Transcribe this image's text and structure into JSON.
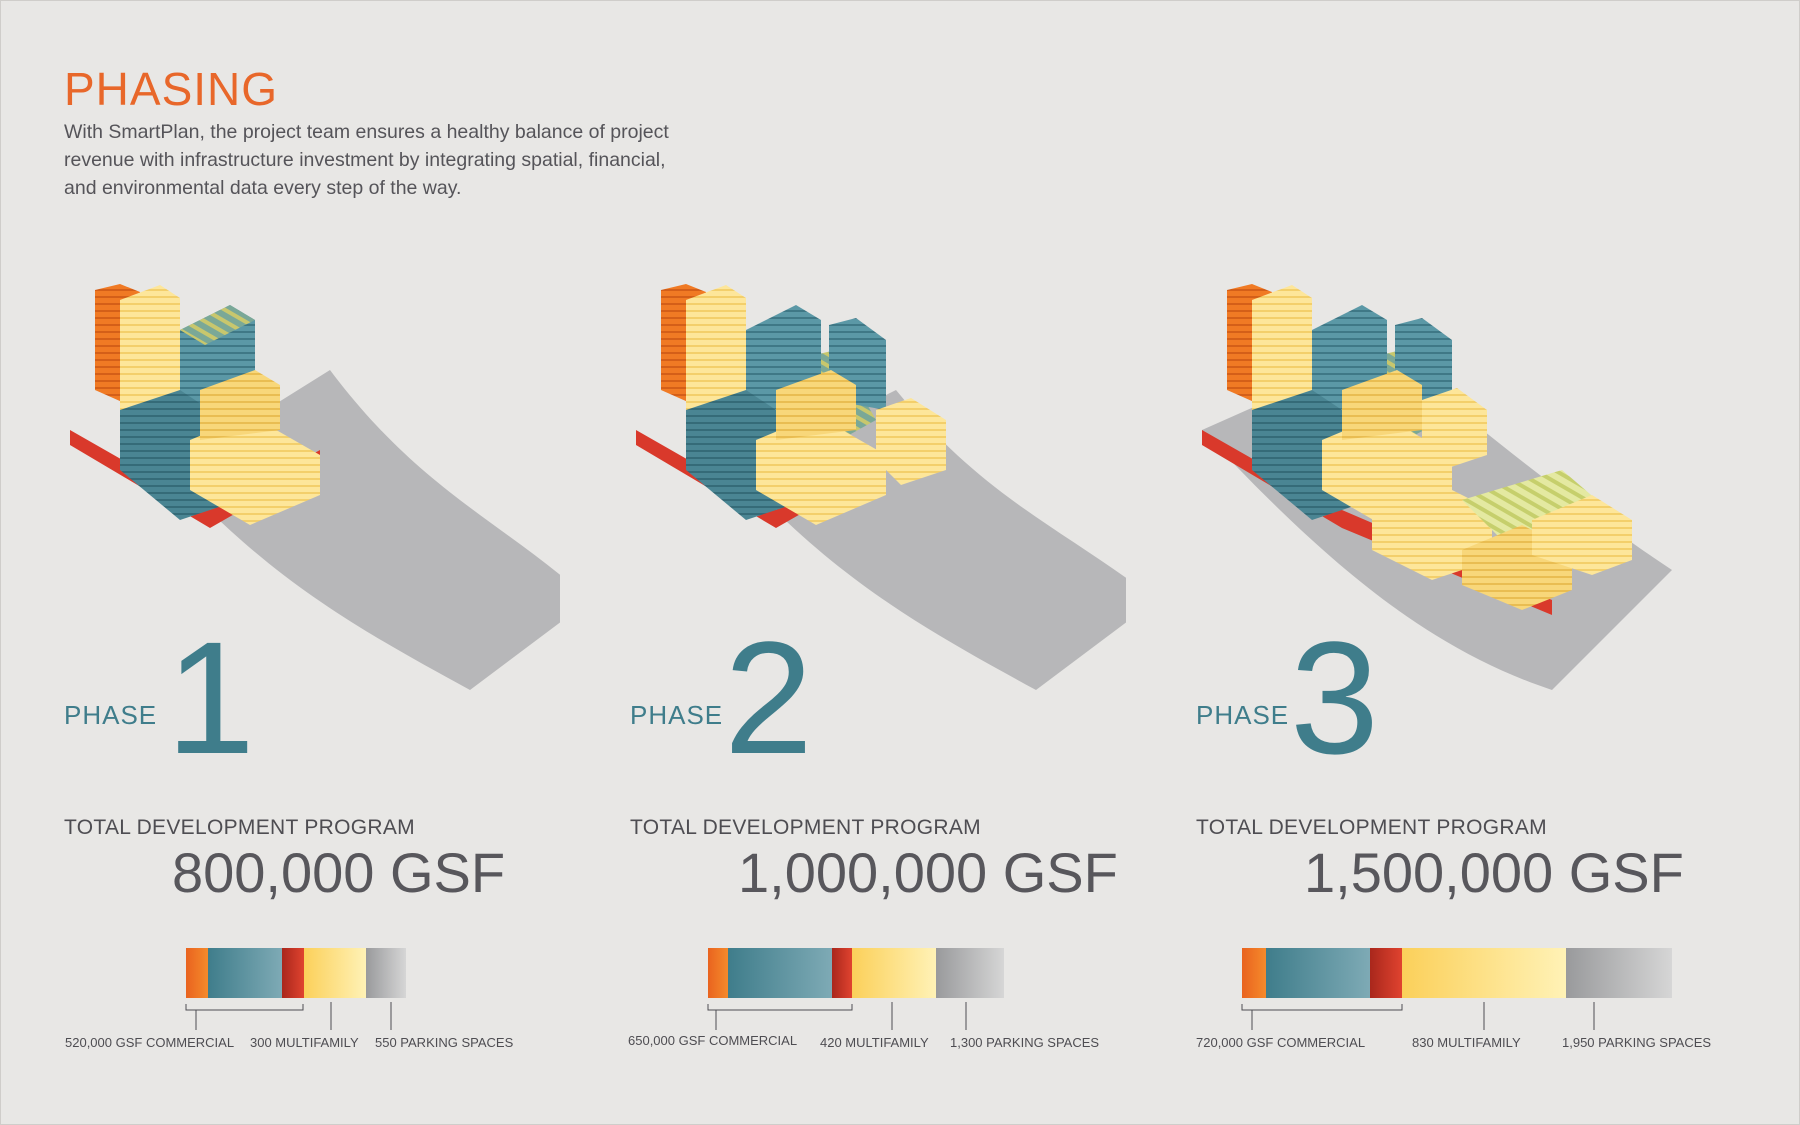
{
  "title": "PHASING",
  "intro": "With SmartPlan, the project team ensures a healthy balance of project revenue with infrastructure investment by integrating spatial, financial, and environmental data every step of the way.",
  "colors": {
    "accent": "#e8672a",
    "teal": "#3f7d8b",
    "commercial_orange": "#f07a24",
    "commercial_teal": "#4e8c9b",
    "red": "#d9392b",
    "multifamily_yellow": "#fde69a",
    "parking_gray": "#b3b3b5"
  },
  "phases": [
    {
      "label": "PHASE",
      "number": "1",
      "program_label": "TOTAL DEVELOPMENT PROGRAM",
      "program_value": "800,000 GSF",
      "commercial": "520,000 GSF COMMERCIAL",
      "multifamily": "300 MULTIFAMILY",
      "parking": "550 PARKING SPACES"
    },
    {
      "label": "PHASE",
      "number": "2",
      "program_label": "TOTAL DEVELOPMENT PROGRAM",
      "program_value": "1,000,000 GSF",
      "commercial": "650,000 GSF COMMERCIAL",
      "multifamily": "420 MULTIFAMILY",
      "parking": "1,300 PARKING SPACES"
    },
    {
      "label": "PHASE",
      "number": "3",
      "program_label": "TOTAL DEVELOPMENT PROGRAM",
      "program_value": "1,500,000 GSF",
      "commercial": "720,000 GSF COMMERCIAL",
      "multifamily": "830 MULTIFAMILY",
      "parking": "1,950 PARKING SPACES"
    }
  ]
}
